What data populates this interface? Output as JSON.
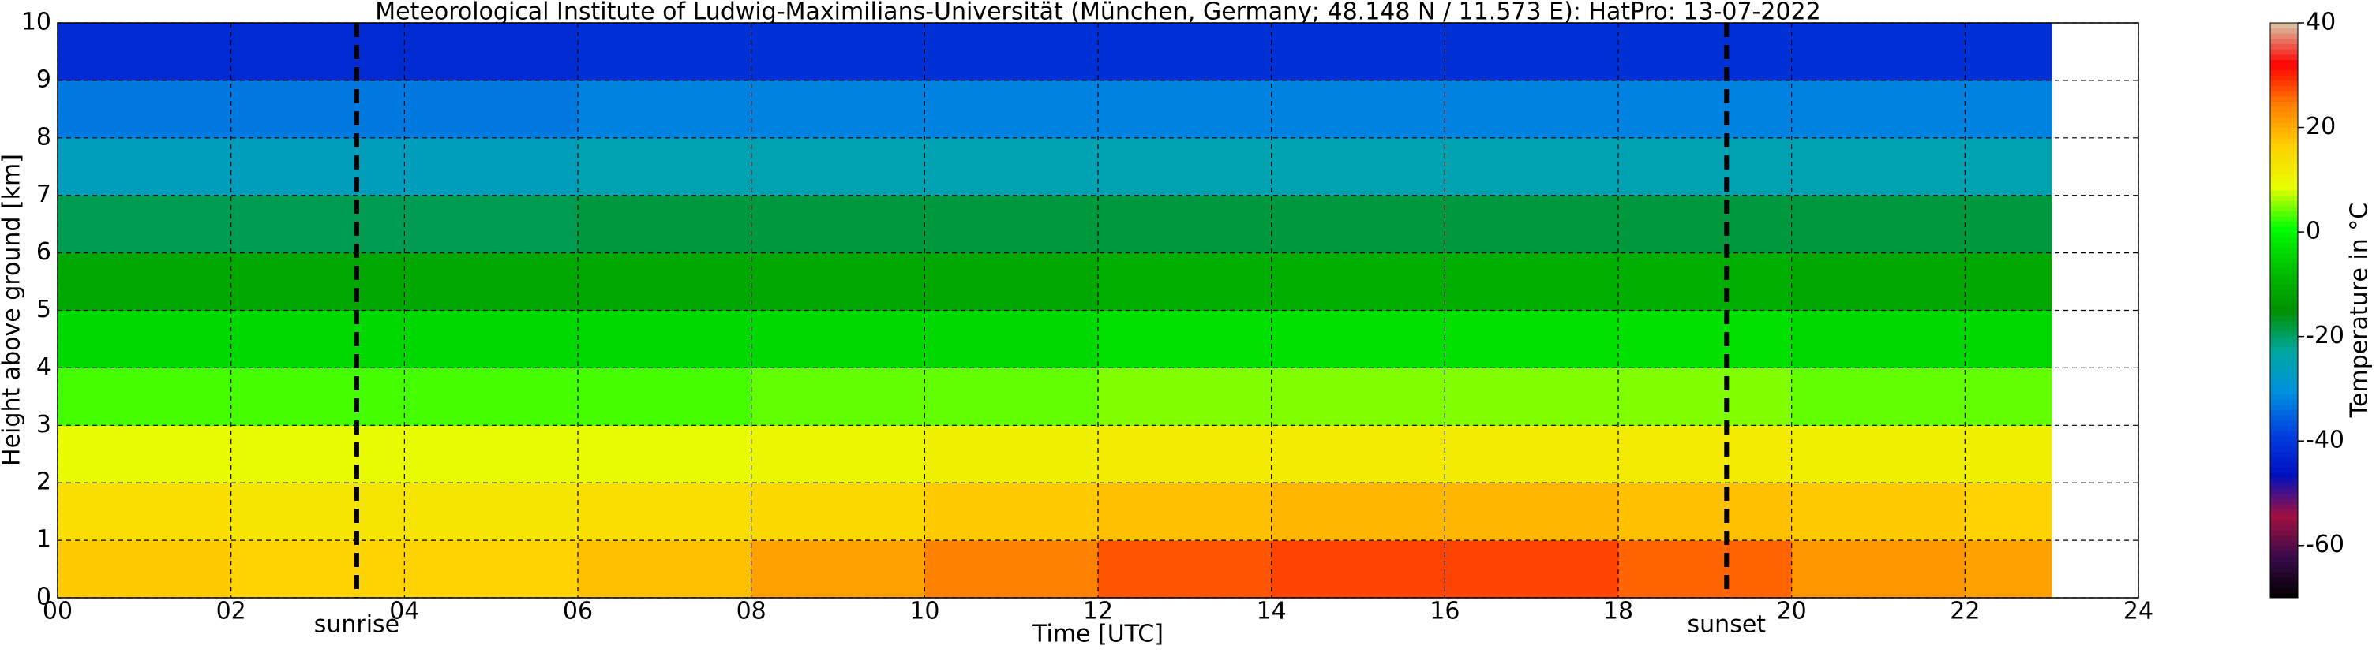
{
  "chart_data": {
    "type": "heatmap",
    "title": "Meteorological Institute of Ludwig-Maximilians-Universität (München, Germany; 48.148 N / 11.573 E):    HatPro: 13-07-2022",
    "x_label": "Time [UTC]",
    "y_label": "Height above ground [km]",
    "colorbar_label": "Temperature in °C",
    "xbins": [
      0,
      2,
      4,
      6,
      8,
      10,
      12,
      14,
      16,
      18,
      20,
      22,
      23
    ],
    "ybins": [
      0,
      1,
      2,
      3,
      4,
      5,
      6,
      7,
      8,
      9,
      10
    ],
    "values": [
      [
        17,
        16,
        16,
        18,
        21,
        24,
        27,
        28,
        28,
        26,
        22,
        21
      ],
      [
        14,
        13,
        13,
        14,
        15,
        17,
        18,
        19,
        19,
        18,
        17,
        16
      ],
      [
        9,
        9,
        9,
        9,
        10,
        11,
        12,
        12,
        12,
        12,
        11,
        11
      ],
      [
        3,
        3,
        3,
        3,
        4,
        4,
        5,
        5,
        5,
        5,
        4,
        4
      ],
      [
        -4,
        -4,
        -4,
        -4,
        -4,
        -4,
        -3,
        -3,
        -3,
        -3,
        -4,
        -4
      ],
      [
        -11,
        -11,
        -11,
        -11,
        -11,
        -11,
        -10,
        -10,
        -10,
        -10,
        -11,
        -11
      ],
      [
        -19,
        -19,
        -19,
        -18,
        -18,
        -18,
        -18,
        -18,
        -18,
        -18,
        -18,
        -18
      ],
      [
        -26,
        -26,
        -26,
        -25,
        -25,
        -25,
        -25,
        -25,
        -25,
        -25,
        -25,
        -25
      ],
      [
        -33,
        -33,
        -33,
        -32,
        -32,
        -32,
        -32,
        -32,
        -32,
        -32,
        -32,
        -32
      ],
      [
        -42,
        -42,
        -42,
        -41,
        -41,
        -41,
        -41,
        -41,
        -41,
        -41,
        -41,
        -41
      ]
    ],
    "xlim": [
      0,
      24
    ],
    "ylim": [
      0,
      10
    ],
    "zlim": [
      -70,
      40
    ],
    "xticks": [
      {
        "value": 0,
        "label": "00"
      },
      {
        "value": 2,
        "label": "02"
      },
      {
        "value": 4,
        "label": "04"
      },
      {
        "value": 6,
        "label": "06"
      },
      {
        "value": 8,
        "label": "08"
      },
      10,
      12,
      14,
      16,
      18,
      20,
      22,
      24
    ],
    "yticks": [
      0,
      1,
      2,
      3,
      4,
      5,
      6,
      7,
      8,
      9,
      10
    ],
    "zticks": [
      -60,
      -40,
      -20,
      0,
      20,
      40
    ],
    "colormap": [
      "#000000",
      "#3a0a4a",
      "#a01040",
      "#0010c0",
      "#0040e0",
      "#0090e0",
      "#00a8a0",
      "#009000",
      "#00c000",
      "#00ff00",
      "#e8ff00",
      "#ffd000",
      "#ff8000",
      "#ff0000",
      "#d8c8a8"
    ],
    "annotations": [
      {
        "x": 3.45,
        "label": "sunrise"
      },
      {
        "x": 19.25,
        "label": "sunset"
      }
    ],
    "grid": true
  }
}
